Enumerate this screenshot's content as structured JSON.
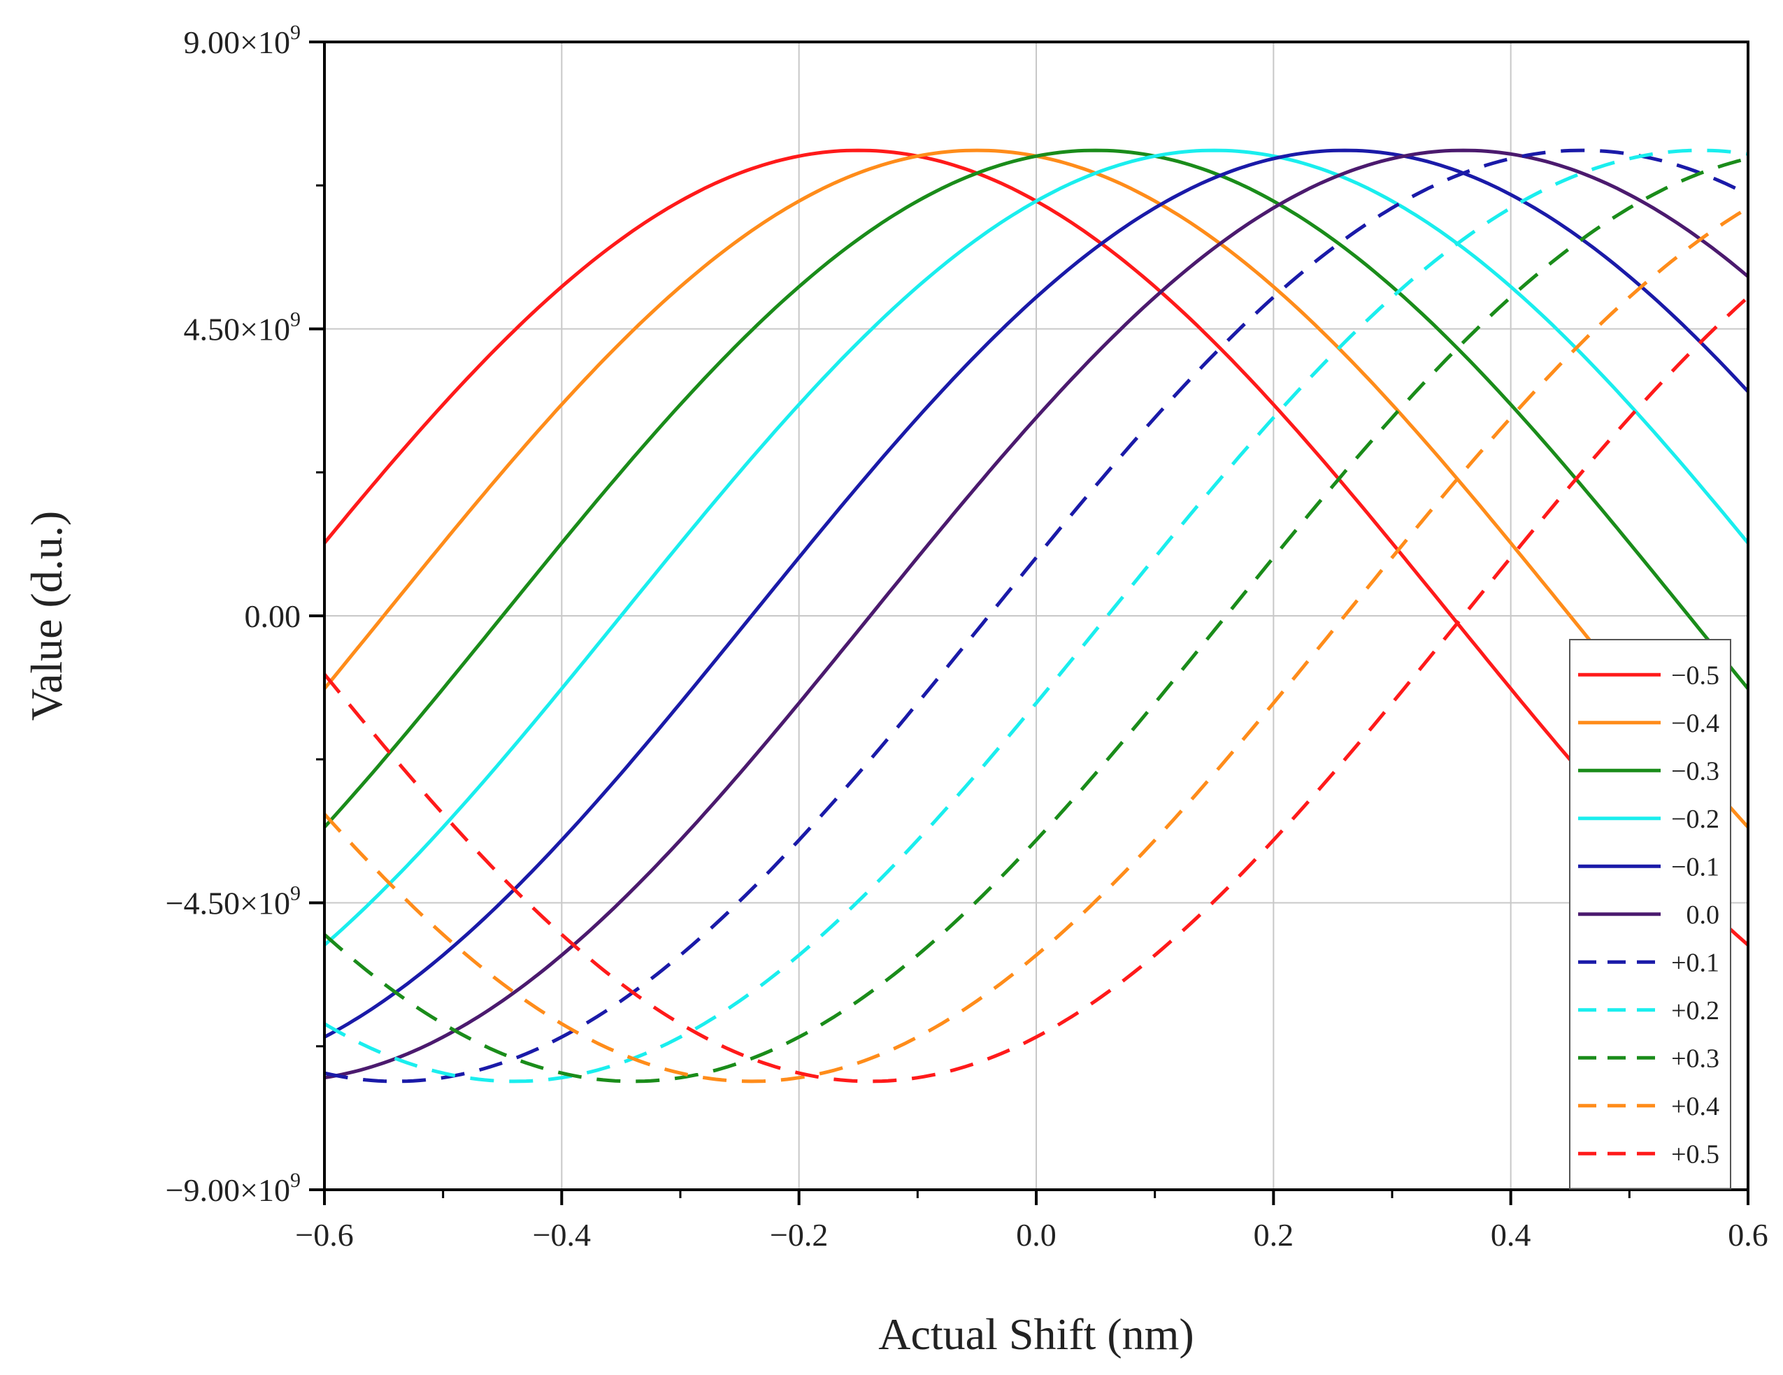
{
  "chart_data": {
    "type": "line",
    "title": "",
    "xlabel": "Actual Shift (nm)",
    "ylabel": "Value (d.u.)",
    "xlim": [
      -0.6,
      0.6
    ],
    "ylim": [
      -9000000000.0,
      9000000000.0
    ],
    "grid": true,
    "legend_position": "bottom-right",
    "x_ticks": [
      -0.6,
      -0.4,
      -0.2,
      0.0,
      0.2,
      0.4,
      0.6
    ],
    "x_tick_labels": [
      "−0.6",
      "−0.4",
      "−0.2",
      "0.0",
      "0.2",
      "0.4",
      "0.6"
    ],
    "y_ticks": [
      9000000000.0,
      4500000000.0,
      0,
      -4500000000.0,
      -9000000000.0
    ],
    "y_tick_labels": [
      {
        "mantissa": "9.00×10",
        "exp": "9"
      },
      {
        "mantissa": "4.50×10",
        "exp": "9"
      },
      {
        "mantissa": "0.00",
        "exp": ""
      },
      {
        "mantissa": "−4.50×10",
        "exp": "9"
      },
      {
        "mantissa": "−9.00×10",
        "exp": "9"
      }
    ],
    "curve_model": {
      "form": "A * sin(2*pi*(x - offset)/period)",
      "amplitude": 7300000000.0,
      "period": 2.0,
      "note": "Each curve is a phase-shifted sinusoid; peak near offset + 0.5, trough near offset - 0.5."
    },
    "series": [
      {
        "name": "−0.5",
        "offset": -0.65,
        "color": "#ff1a1a",
        "dash": false
      },
      {
        "name": "−0.4",
        "offset": -0.55,
        "color": "#ff8c1a",
        "dash": false
      },
      {
        "name": "−0.3",
        "offset": -0.45,
        "color": "#1a8c1a",
        "dash": false
      },
      {
        "name": "−0.2",
        "offset": -0.35,
        "color": "#1aeeee",
        "dash": false
      },
      {
        "name": "−0.1",
        "offset": -0.24,
        "color": "#1a1aa8",
        "dash": false
      },
      {
        "name": "0.0",
        "offset": -0.14,
        "color": "#4b1a6e",
        "dash": false
      },
      {
        "name": "+0.1",
        "offset": -0.04,
        "color": "#1a1aa8",
        "dash": true
      },
      {
        "name": "+0.2",
        "offset": 0.06,
        "color": "#1aeeee",
        "dash": true
      },
      {
        "name": "+0.3",
        "offset": 0.16,
        "color": "#1a8c1a",
        "dash": true
      },
      {
        "name": "+0.4",
        "offset": 0.26,
        "color": "#ff8c1a",
        "dash": true
      },
      {
        "name": "+0.5",
        "offset": 0.36,
        "color": "#ff1a1a",
        "dash": true
      }
    ]
  }
}
